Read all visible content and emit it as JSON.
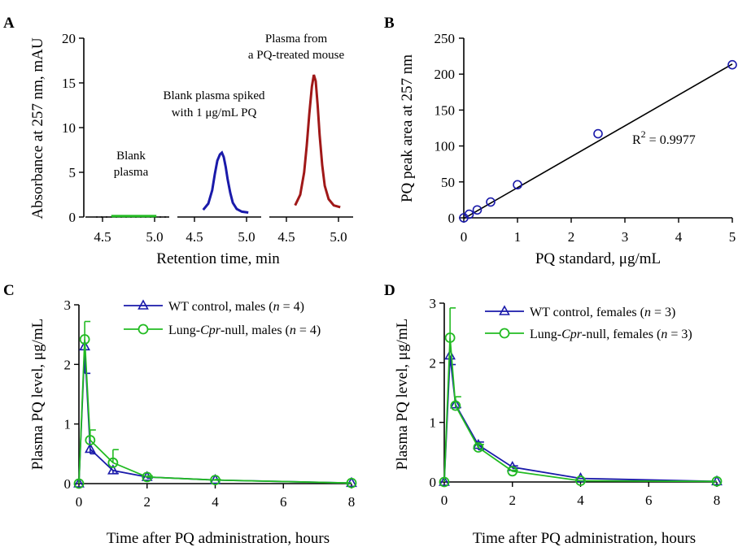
{
  "chart_data": [
    {
      "panel": "A",
      "type": "line",
      "ylabel": "Absorbance at 257 nm, mAU",
      "xlabel": "Retention time, min",
      "ylim": [
        0,
        20
      ],
      "yticks": [
        "0",
        "5",
        "10",
        "15",
        "20"
      ],
      "subplots": [
        {
          "annotation": [
            "Blank",
            "plasma"
          ],
          "color": "#22bb22",
          "xlim": [
            4.4,
            5.05
          ],
          "xticks": [
            "4.5",
            "5.0"
          ],
          "x": [
            4.6,
            4.95
          ],
          "y": [
            0.1,
            0.1
          ]
        },
        {
          "annotation": [
            "Blank plasma spiked",
            "with 1 μg/mL PQ"
          ],
          "color": "#1a1aaa",
          "xlim": [
            4.4,
            5.05
          ],
          "xticks": [
            "4.5",
            "5.0"
          ],
          "x": [
            4.6,
            4.64,
            4.67,
            4.69,
            4.71,
            4.73,
            4.745,
            4.76,
            4.775,
            4.79,
            4.81,
            4.83,
            4.86,
            4.9,
            4.95
          ],
          "y": [
            0.8,
            1.5,
            3.0,
            4.8,
            6.3,
            7.0,
            7.2,
            6.7,
            5.6,
            4.2,
            2.7,
            1.6,
            0.9,
            0.6,
            0.5
          ]
        },
        {
          "annotation": [
            "Plasma  from",
            "a PQ-treated mouse"
          ],
          "color": "#a01818",
          "xlim": [
            4.4,
            5.05
          ],
          "xticks": [
            "4.5",
            "5.0"
          ],
          "x": [
            4.6,
            4.64,
            4.67,
            4.69,
            4.71,
            4.73,
            4.745,
            4.76,
            4.775,
            4.79,
            4.81,
            4.83,
            4.86,
            4.9,
            4.95
          ],
          "y": [
            1.3,
            2.5,
            5.0,
            8.0,
            11.5,
            14.6,
            15.9,
            15.2,
            12.5,
            9.2,
            5.8,
            3.5,
            2.0,
            1.3,
            1.1
          ]
        }
      ]
    },
    {
      "panel": "B",
      "type": "scatter",
      "ylabel": "PQ peak area at 257 nm",
      "xlabel": "PQ standard, μg/mL",
      "xlim": [
        0,
        5
      ],
      "ylim": [
        0,
        250
      ],
      "xticks": [
        "0",
        "1",
        "2",
        "3",
        "4",
        "5"
      ],
      "yticks": [
        "0",
        "50",
        "100",
        "150",
        "200",
        "250"
      ],
      "x": [
        0,
        0.1,
        0.25,
        0.5,
        1,
        2.5,
        5
      ],
      "y": [
        0,
        5,
        11,
        22,
        46,
        117,
        213
      ],
      "fit_line": {
        "x": [
          0,
          5
        ],
        "y": [
          -1,
          214
        ]
      },
      "r2_prefix": "R",
      "r2_exp": "2",
      "r2_value": " = 0.9977"
    },
    {
      "panel": "C",
      "type": "line",
      "ylabel": "Plasma  PQ level, μg/mL",
      "xlabel": "Time after PQ administration, hours",
      "xlim": [
        0,
        8
      ],
      "ylim": [
        0,
        3
      ],
      "xticks": [
        "0",
        "2",
        "4",
        "6",
        "8"
      ],
      "yticks": [
        "0",
        "1",
        "2",
        "3"
      ],
      "series": [
        {
          "legend_pre": "WT control, males (",
          "legend_n": "n",
          "legend_post": " = 4)",
          "marker": "triangle",
          "color": "#1a1aaa",
          "x": [
            0,
            0.17,
            0.33,
            1,
            2,
            4,
            8
          ],
          "y": [
            0,
            2.3,
            0.58,
            0.22,
            0.11,
            0.06,
            0.01
          ],
          "err_up": [
            0,
            0,
            0,
            0,
            0,
            0,
            0
          ],
          "err_down": [
            0,
            0.45,
            0.08,
            0.05,
            0.02,
            0,
            0
          ]
        },
        {
          "legend_pre": "Lung-",
          "legend_it": "Cpr",
          "legend_mid": "-null, males (",
          "legend_n": "n",
          "legend_post": " = 4)",
          "marker": "circle",
          "color": "#22bb22",
          "x": [
            0,
            0.17,
            0.33,
            1,
            2,
            4,
            8
          ],
          "y": [
            0,
            2.42,
            0.73,
            0.35,
            0.11,
            0.06,
            0.01
          ],
          "err_up": [
            0,
            0.3,
            0.17,
            0.22,
            0.02,
            0.01,
            0
          ],
          "err_down": [
            0,
            0,
            0,
            0,
            0,
            0,
            0
          ]
        }
      ]
    },
    {
      "panel": "D",
      "type": "line",
      "ylabel": "Plasma  PQ level, μg/mL",
      "xlabel": "Time after PQ administration, hours",
      "xlim": [
        0,
        8
      ],
      "ylim": [
        0,
        3
      ],
      "xticks": [
        "0",
        "2",
        "4",
        "6",
        "8"
      ],
      "yticks": [
        "0",
        "1",
        "2",
        "3"
      ],
      "series": [
        {
          "legend_pre": "WT control, females (",
          "legend_n": "n",
          "legend_post": " = 3)",
          "marker": "triangle",
          "color": "#1a1aaa",
          "x": [
            0,
            0.17,
            0.33,
            1,
            2,
            4,
            8
          ],
          "y": [
            0,
            2.12,
            1.3,
            0.62,
            0.25,
            0.06,
            0.01
          ],
          "err_up": [
            0,
            0,
            0,
            0.05,
            0.02,
            0,
            0
          ],
          "err_down": [
            0,
            0.15,
            0.05,
            0.08,
            0.02,
            0,
            0
          ]
        },
        {
          "legend_pre": "Lung-",
          "legend_it": "Cpr",
          "legend_mid": "-null, females (",
          "legend_n": "n",
          "legend_post": " = 3)",
          "marker": "circle",
          "color": "#22bb22",
          "x": [
            0,
            0.17,
            0.33,
            1,
            2,
            4,
            8
          ],
          "y": [
            0,
            2.42,
            1.28,
            0.58,
            0.18,
            0.02,
            0.01
          ],
          "err_up": [
            0,
            0.5,
            0.15,
            0.05,
            0.02,
            0,
            0
          ],
          "err_down": [
            0,
            0,
            0,
            0,
            0,
            0,
            0
          ]
        }
      ]
    }
  ]
}
